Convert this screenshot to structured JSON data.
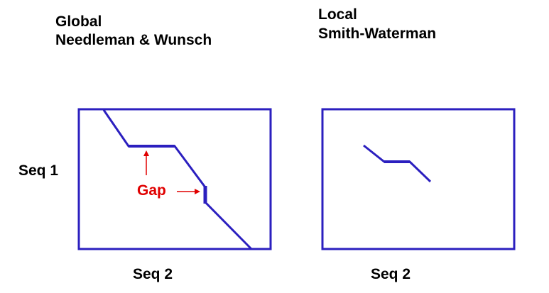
{
  "left_panel": {
    "title_line1": "Global",
    "title_line2": "Needleman & Wunsch",
    "y_axis_label": "Seq 1",
    "x_axis_label": "Seq 2",
    "gap_label": "Gap"
  },
  "right_panel": {
    "title_line1": "Local",
    "title_line2": "Smith-Waterman",
    "x_axis_label": "Seq 2"
  },
  "colors": {
    "frame": "#2b1fbf",
    "path": "#2b1fbf",
    "gap_annotation": "#e00000",
    "text": "#000000"
  }
}
